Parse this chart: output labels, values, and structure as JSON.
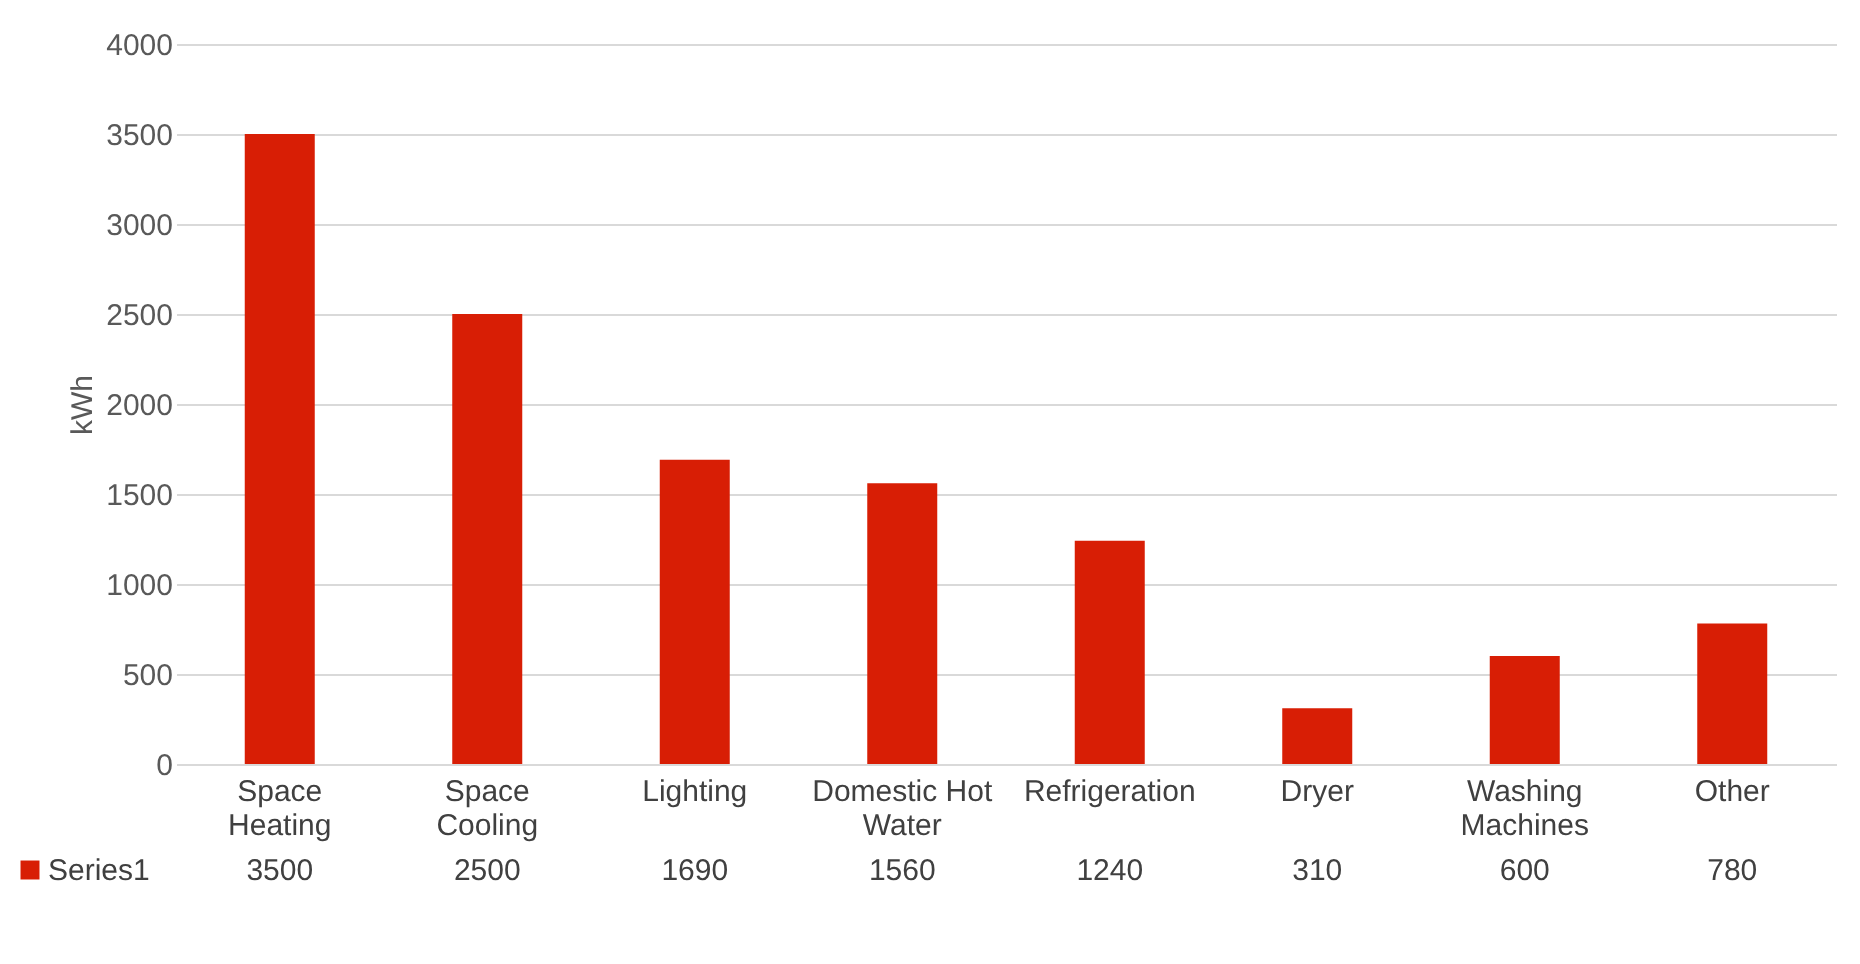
{
  "chart_data": {
    "type": "bar",
    "categories": [
      "Space Heating",
      "Space Cooling",
      "Lighting",
      "Domestic Hot Water",
      "Refrigeration",
      "Dryer",
      "Washing Machines",
      "Other"
    ],
    "series": [
      {
        "name": "Series1",
        "color": "#d81e05",
        "values": [
          3500,
          2500,
          1690,
          1560,
          1240,
          310,
          600,
          780
        ]
      }
    ],
    "ylabel": "kWh",
    "ylim": [
      0,
      4000
    ],
    "yticks": [
      0,
      500,
      1000,
      1500,
      2000,
      2500,
      3000,
      3500,
      4000
    ],
    "grid": "y",
    "data_labels": true
  }
}
